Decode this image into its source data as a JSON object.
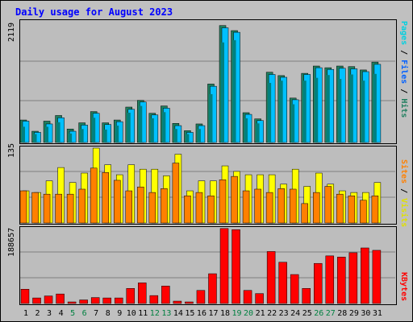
{
  "title": "Daily usage for August 2023",
  "colors": {
    "pages": "#00d0e0",
    "pages_dark": "#008080",
    "files": "#00c0ff",
    "hits": "#1f7f5f",
    "visits": "#ffff00",
    "sites": "#ff8000",
    "kbytes": "#ff0000",
    "weekend_day": "#008040",
    "weekday": "#000000"
  },
  "panels": {
    "top": {
      "ymax_label": "2119",
      "right_labels": [
        "Pages",
        " / ",
        "Files",
        " / ",
        "Hits"
      ]
    },
    "middle": {
      "ymax_label": "135",
      "right_labels": [
        "Sites",
        " / ",
        "Visits"
      ]
    },
    "bottom": {
      "ymax_label": "188657",
      "right_labels": [
        "KBytes"
      ]
    }
  },
  "chart_data": {
    "type": "bar",
    "categories": [
      "1",
      "2",
      "3",
      "4",
      "5",
      "6",
      "7",
      "8",
      "9",
      "10",
      "11",
      "12",
      "13",
      "14",
      "15",
      "16",
      "17",
      "18",
      "19",
      "20",
      "21",
      "22",
      "23",
      "24",
      "25",
      "26",
      "27",
      "28",
      "29",
      "30",
      "31"
    ],
    "weekend_days": [
      "5",
      "6",
      "12",
      "13",
      "19",
      "20",
      "26",
      "27"
    ],
    "panels": [
      {
        "name": "top",
        "ylim": [
          0,
          2119
        ],
        "series": [
          {
            "name": "Hits",
            "values": [
              400,
              200,
              380,
              480,
              240,
              350,
              550,
              350,
              400,
              630,
              750,
              520,
              650,
              340,
              210,
              330,
              1040,
              2080,
              1990,
              530,
              420,
              1250,
              1190,
              790,
              1230,
              1360,
              1330,
              1360,
              1350,
              1290,
              1430
            ]
          },
          {
            "name": "Files",
            "values": [
              380,
              180,
              330,
              440,
              200,
              310,
              520,
              320,
              370,
              590,
              720,
              490,
              610,
              300,
              180,
              300,
              1000,
              2040,
              1960,
              500,
              390,
              1210,
              1160,
              760,
              1210,
              1330,
              1300,
              1320,
              1310,
              1260,
              1390
            ]
          },
          {
            "name": "Pages",
            "values": [
              280,
              150,
              280,
              360,
              160,
              240,
              440,
              230,
              300,
              530,
              650,
              430,
              540,
              240,
              150,
              240,
              860,
              1780,
              1820,
              430,
              340,
              1060,
              1100,
              680,
              1100,
              1150,
              1200,
              1130,
              1210,
              1100,
              1220
            ]
          }
        ]
      },
      {
        "name": "middle",
        "ylim": [
          0,
          135
        ],
        "series": [
          {
            "name": "Visits",
            "values": [
              58,
              55,
              76,
              100,
              73,
              90,
              135,
              105,
              87,
              105,
              97,
              97,
              85,
              124,
              58,
              76,
              76,
              103,
              93,
              87,
              87,
              87,
              70,
              97,
              66,
              90,
              70,
              58,
              55,
              55,
              73
            ]
          },
          {
            "name": "Sites",
            "values": [
              58,
              55,
              52,
              52,
              52,
              61,
              99,
              91,
              77,
              58,
              65,
              55,
              62,
              108,
              49,
              55,
              49,
              78,
              84,
              58,
              61,
              55,
              62,
              61,
              35,
              55,
              66,
              52,
              49,
              41,
              49
            ]
          }
        ]
      },
      {
        "name": "bottom",
        "ylim": [
          0,
          188657
        ],
        "series": [
          {
            "name": "KBytes",
            "values": [
              36000,
              14000,
              19000,
              24000,
              4000,
              9000,
              15000,
              14000,
              14000,
              38000,
              52000,
              20000,
              44000,
              6000,
              4000,
              33000,
              75000,
              189000,
              186000,
              33000,
              25000,
              131000,
              104000,
              73000,
              38000,
              101000,
              120000,
              117000,
              128000,
              140000,
              134000
            ]
          }
        ]
      }
    ]
  }
}
